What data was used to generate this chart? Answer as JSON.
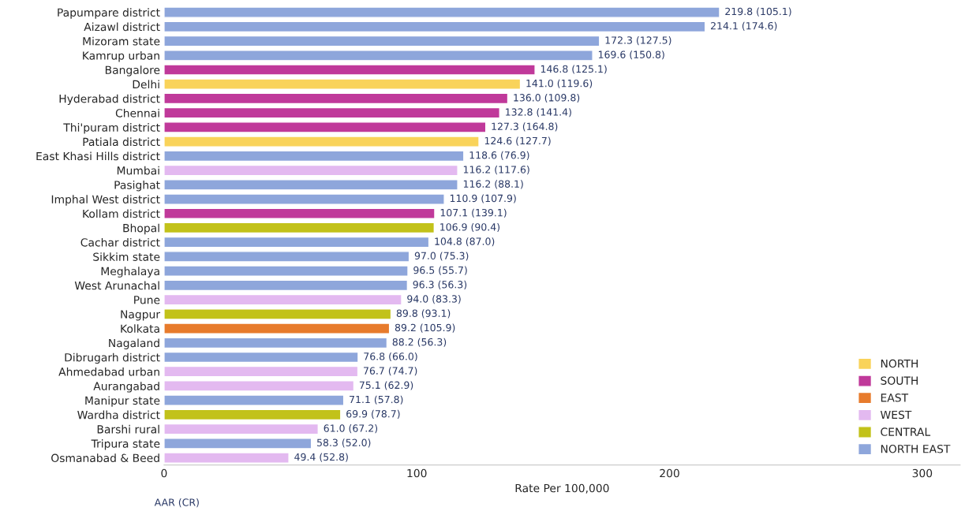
{
  "chart_data": {
    "type": "bar",
    "orientation": "horizontal",
    "xlabel": "Rate Per 100,000",
    "categories": [
      "Papumpare district",
      "Aizawl district",
      "Mizoram state",
      "Kamrup urban",
      "Bangalore",
      "Delhi",
      "Hyderabad district",
      "Chennai",
      "Thi'puram district",
      "Patiala district",
      "East Khasi Hills district",
      "Mumbai",
      "Pasighat",
      "Imphal West district",
      "Kollam district",
      "Bhopal",
      "Cachar district",
      "Sikkim state",
      "Meghalaya",
      "West Arunachal",
      "Pune",
      "Nagpur",
      "Kolkata",
      "Nagaland",
      "Dibrugarh district",
      "Ahmedabad urban",
      "Aurangabad",
      "Manipur state",
      "Wardha district",
      "Barshi rural",
      "Tripura state",
      "Osmanabad & Beed"
    ],
    "series": [
      {
        "name": "NORTH",
        "color": "#f9d35a",
        "values": [
          null,
          null,
          null,
          null,
          null,
          141.0,
          null,
          null,
          null,
          124.6,
          null,
          null,
          null,
          null,
          null,
          null,
          null,
          null,
          null,
          null,
          null,
          null,
          null,
          null,
          null,
          null,
          null,
          null,
          null,
          null,
          null,
          null
        ]
      },
      {
        "name": "SOUTH",
        "color": "#c0399a",
        "values": [
          null,
          null,
          null,
          null,
          146.8,
          null,
          136.0,
          132.8,
          127.3,
          null,
          null,
          null,
          null,
          null,
          107.1,
          null,
          null,
          null,
          null,
          null,
          null,
          null,
          null,
          null,
          null,
          null,
          null,
          null,
          null,
          null,
          null,
          null
        ]
      },
      {
        "name": "EAST",
        "color": "#e77b2c",
        "values": [
          null,
          null,
          null,
          null,
          null,
          null,
          null,
          null,
          null,
          null,
          null,
          null,
          null,
          null,
          null,
          null,
          null,
          null,
          null,
          null,
          null,
          null,
          89.2,
          null,
          null,
          null,
          null,
          null,
          null,
          null,
          null,
          null
        ]
      },
      {
        "name": "WEST",
        "color": "#e3b9f0",
        "values": [
          null,
          null,
          null,
          null,
          null,
          null,
          null,
          null,
          null,
          null,
          null,
          116.2,
          null,
          null,
          null,
          null,
          null,
          null,
          null,
          null,
          94.0,
          null,
          null,
          null,
          null,
          76.7,
          75.1,
          null,
          null,
          61.0,
          null,
          49.4
        ]
      },
      {
        "name": "CENTRAL",
        "color": "#c2c21a",
        "values": [
          null,
          null,
          null,
          null,
          null,
          null,
          null,
          null,
          null,
          null,
          null,
          null,
          null,
          null,
          null,
          106.9,
          null,
          null,
          null,
          null,
          null,
          89.8,
          null,
          null,
          null,
          null,
          null,
          null,
          69.9,
          null,
          null,
          null
        ]
      },
      {
        "name": "NORTH EAST",
        "color": "#8ea6db",
        "values": [
          219.8,
          214.1,
          172.3,
          169.6,
          null,
          null,
          null,
          null,
          null,
          null,
          118.6,
          null,
          116.2,
          110.9,
          null,
          null,
          104.8,
          97.0,
          96.5,
          96.3,
          null,
          null,
          null,
          88.2,
          76.8,
          null,
          null,
          71.1,
          null,
          null,
          58.3,
          null
        ]
      }
    ],
    "value_labels": [
      "219.8 (105.1)",
      "214.1 (174.6)",
      "172.3 (127.5)",
      "169.6 (150.8)",
      "146.8 (125.1)",
      "141.0 (119.6)",
      "136.0 (109.8)",
      "132.8 (141.4)",
      "127.3 (164.8)",
      "124.6 (127.7)",
      "118.6 (76.9)",
      "116.2 (117.6)",
      "116.2 (88.1)",
      "110.9 (107.9)",
      "107.1 (139.1)",
      "106.9 (90.4)",
      "104.8 (87.0)",
      "97.0 (75.3)",
      "96.5 (55.7)",
      "96.3 (56.3)",
      "94.0 (83.3)",
      "89.8 (93.1)",
      "89.2 (105.9)",
      "88.2 (56.3)",
      "76.8 (66.0)",
      "76.7 (74.7)",
      "75.1 (62.9)",
      "71.1 (57.8)",
      "69.9 (78.7)",
      "61.0 (67.2)",
      "58.3 (52.0)",
      "49.4 (52.8)"
    ],
    "xlim": [
      0,
      315
    ],
    "xticks": [
      0,
      100,
      200,
      300
    ],
    "grid": false,
    "legend": "bottom right",
    "annotations": [
      "AAR (CR)"
    ]
  }
}
